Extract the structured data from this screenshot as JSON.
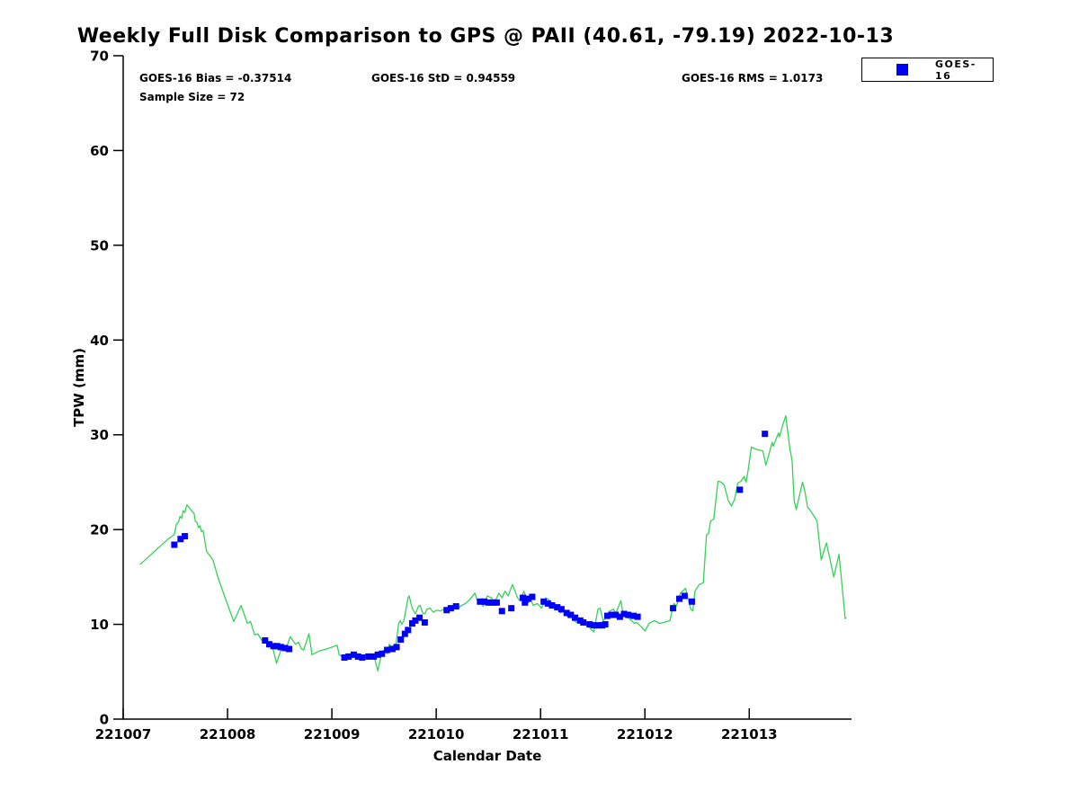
{
  "chart_data": {
    "type": "line",
    "title": "Weekly Full Disk Comparison to GPS @ PAII (40.61, -79.19) 2022-10-13",
    "xlabel": "Calendar Date",
    "ylabel": "TPW (mm)",
    "stats": {
      "bias_label": "GOES-16 Bias = -0.37514",
      "std_label": "GOES-16 StD = 0.94559",
      "rms_label": "GOES-16 RMS = 1.0173",
      "sample_label": "Sample Size = 72"
    },
    "legend": {
      "label": "GOES-16",
      "position": "top-right"
    },
    "colors": {
      "gps_line": "#35d158",
      "goes_marker": "#0000ff",
      "axis": "#000000"
    },
    "x_axis": {
      "tick_labels": [
        "221007",
        "221008",
        "221009",
        "221010",
        "221011",
        "221012",
        "221013"
      ],
      "tick_days": [
        0,
        1,
        2,
        3,
        4,
        5,
        6
      ],
      "range_days": [
        0,
        6.98
      ],
      "grid": false
    },
    "y_axis": {
      "ticks": [
        0,
        10,
        20,
        30,
        40,
        50,
        60,
        70
      ],
      "range": [
        0,
        70
      ],
      "grid": false
    },
    "series": [
      {
        "name": "GPS",
        "type": "line",
        "color_key": "gps_line",
        "points": [
          [
            0.16,
            16.3
          ],
          [
            0.25,
            17.2
          ],
          [
            0.34,
            18.1
          ],
          [
            0.43,
            19.0
          ],
          [
            0.47,
            19.3
          ],
          [
            0.49,
            19.5
          ],
          [
            0.51,
            20.6
          ],
          [
            0.53,
            20.8
          ],
          [
            0.545,
            21.4
          ],
          [
            0.56,
            21.2
          ],
          [
            0.575,
            22.0
          ],
          [
            0.59,
            21.8
          ],
          [
            0.61,
            22.6
          ],
          [
            0.635,
            22.3
          ],
          [
            0.655,
            22.0
          ],
          [
            0.68,
            21.7
          ],
          [
            0.69,
            20.9
          ],
          [
            0.71,
            20.7
          ],
          [
            0.72,
            20.2
          ],
          [
            0.735,
            20.4
          ],
          [
            0.75,
            19.8
          ],
          [
            0.765,
            19.9
          ],
          [
            0.8,
            17.7
          ],
          [
            0.86,
            16.8
          ],
          [
            0.91,
            14.9
          ],
          [
            0.97,
            13.0
          ],
          [
            1.03,
            11.2
          ],
          [
            1.06,
            10.3
          ],
          [
            1.13,
            12.0
          ],
          [
            1.19,
            10.1
          ],
          [
            1.22,
            10.3
          ],
          [
            1.26,
            8.9
          ],
          [
            1.29,
            9.0
          ],
          [
            1.34,
            8.1
          ],
          [
            1.36,
            8.5
          ],
          [
            1.39,
            7.6
          ],
          [
            1.42,
            8.1
          ],
          [
            1.47,
            5.9
          ],
          [
            1.53,
            7.9
          ],
          [
            1.56,
            7.4
          ],
          [
            1.6,
            8.7
          ],
          [
            1.62,
            8.4
          ],
          [
            1.65,
            7.9
          ],
          [
            1.68,
            8.1
          ],
          [
            1.71,
            7.4
          ],
          [
            1.73,
            7.3
          ],
          [
            1.78,
            9.0
          ],
          [
            1.81,
            6.8
          ],
          [
            1.88,
            7.2
          ],
          [
            1.95,
            7.4
          ],
          [
            2.05,
            7.8
          ],
          [
            2.07,
            6.8
          ],
          [
            2.11,
            6.5
          ],
          [
            2.16,
            6.9
          ],
          [
            2.2,
            6.5
          ],
          [
            2.24,
            6.8
          ],
          [
            2.27,
            6.2
          ],
          [
            2.31,
            6.5
          ],
          [
            2.34,
            6.9
          ],
          [
            2.37,
            6.5
          ],
          [
            2.4,
            6.8
          ],
          [
            2.44,
            5.1
          ],
          [
            2.48,
            7.1
          ],
          [
            2.51,
            7.4
          ],
          [
            2.53,
            6.9
          ],
          [
            2.55,
            7.9
          ],
          [
            2.59,
            7.3
          ],
          [
            2.61,
            7.6
          ],
          [
            2.64,
            10.1
          ],
          [
            2.655,
            10.4
          ],
          [
            2.67,
            10.0
          ],
          [
            2.69,
            10.4
          ],
          [
            2.71,
            11.6
          ],
          [
            2.73,
            12.8
          ],
          [
            2.74,
            13.0
          ],
          [
            2.77,
            11.7
          ],
          [
            2.785,
            11.4
          ],
          [
            2.8,
            11.1
          ],
          [
            2.83,
            11.9
          ],
          [
            2.845,
            12.0
          ],
          [
            2.87,
            11.2
          ],
          [
            2.89,
            11.1
          ],
          [
            2.91,
            11.6
          ],
          [
            2.94,
            11.7
          ],
          [
            2.97,
            11.3
          ],
          [
            3.01,
            11.5
          ],
          [
            3.04,
            11.4
          ],
          [
            3.09,
            11.7
          ],
          [
            3.11,
            11.8
          ],
          [
            3.17,
            11.9
          ],
          [
            3.2,
            11.6
          ],
          [
            3.23,
            11.9
          ],
          [
            3.28,
            12.2
          ],
          [
            3.32,
            12.6
          ],
          [
            3.37,
            13.3
          ],
          [
            3.4,
            12.3
          ],
          [
            3.43,
            12.5
          ],
          [
            3.45,
            11.9
          ],
          [
            3.49,
            13.0
          ],
          [
            3.53,
            12.8
          ],
          [
            3.56,
            12.3
          ],
          [
            3.6,
            13.3
          ],
          [
            3.63,
            12.8
          ],
          [
            3.66,
            13.5
          ],
          [
            3.69,
            13.0
          ],
          [
            3.73,
            14.2
          ],
          [
            3.78,
            12.8
          ],
          [
            3.8,
            12.5
          ],
          [
            3.84,
            13.5
          ],
          [
            3.88,
            12.3
          ],
          [
            3.91,
            12.5
          ],
          [
            3.93,
            12.0
          ],
          [
            3.97,
            12.2
          ],
          [
            4.01,
            11.7
          ],
          [
            4.05,
            12.8
          ],
          [
            4.08,
            12.6
          ],
          [
            4.12,
            11.9
          ],
          [
            4.15,
            12.0
          ],
          [
            4.19,
            11.2
          ],
          [
            4.22,
            11.4
          ],
          [
            4.27,
            10.7
          ],
          [
            4.29,
            10.9
          ],
          [
            4.34,
            10.2
          ],
          [
            4.36,
            10.4
          ],
          [
            4.41,
            10.0
          ],
          [
            4.44,
            10.1
          ],
          [
            4.48,
            9.5
          ],
          [
            4.51,
            9.2
          ],
          [
            4.55,
            11.6
          ],
          [
            4.57,
            11.7
          ],
          [
            4.6,
            10.4
          ],
          [
            4.62,
            10.6
          ],
          [
            4.66,
            11.4
          ],
          [
            4.7,
            11.6
          ],
          [
            4.72,
            11.1
          ],
          [
            4.77,
            12.5
          ],
          [
            4.79,
            11.1
          ],
          [
            4.83,
            10.7
          ],
          [
            4.85,
            10.6
          ],
          [
            4.9,
            10.1
          ],
          [
            4.92,
            10.2
          ],
          [
            4.97,
            9.7
          ],
          [
            5.0,
            9.3
          ],
          [
            5.04,
            10.1
          ],
          [
            5.09,
            10.4
          ],
          [
            5.14,
            10.1
          ],
          [
            5.18,
            10.2
          ],
          [
            5.24,
            10.4
          ],
          [
            5.27,
            12.0
          ],
          [
            5.28,
            12.2
          ],
          [
            5.3,
            11.9
          ],
          [
            5.33,
            12.8
          ],
          [
            5.34,
            13.3
          ],
          [
            5.37,
            13.6
          ],
          [
            5.39,
            13.8
          ],
          [
            5.41,
            12.8
          ],
          [
            5.44,
            11.6
          ],
          [
            5.46,
            11.4
          ],
          [
            5.48,
            13.5
          ],
          [
            5.52,
            14.2
          ],
          [
            5.56,
            14.4
          ],
          [
            5.59,
            19.4
          ],
          [
            5.61,
            19.6
          ],
          [
            5.63,
            20.9
          ],
          [
            5.66,
            21.1
          ],
          [
            5.7,
            25.1
          ],
          [
            5.73,
            25.0
          ],
          [
            5.76,
            24.7
          ],
          [
            5.8,
            23.0
          ],
          [
            5.83,
            22.5
          ],
          [
            5.86,
            23.2
          ],
          [
            5.89,
            24.9
          ],
          [
            5.92,
            25.1
          ],
          [
            5.95,
            25.6
          ],
          [
            5.97,
            25.0
          ],
          [
            5.99,
            26.3
          ],
          [
            6.02,
            28.7
          ],
          [
            6.06,
            28.5
          ],
          [
            6.09,
            28.4
          ],
          [
            6.13,
            28.3
          ],
          [
            6.16,
            26.8
          ],
          [
            6.22,
            29.2
          ],
          [
            6.23,
            28.8
          ],
          [
            6.28,
            30.2
          ],
          [
            6.29,
            29.8
          ],
          [
            6.32,
            31.0
          ],
          [
            6.35,
            32.0
          ],
          [
            6.39,
            28.5
          ],
          [
            6.41,
            27.3
          ],
          [
            6.43,
            23.1
          ],
          [
            6.45,
            22.1
          ],
          [
            6.51,
            25.0
          ],
          [
            6.53,
            24.2
          ],
          [
            6.56,
            22.3
          ],
          [
            6.58,
            22.1
          ],
          [
            6.61,
            21.6
          ],
          [
            6.65,
            20.9
          ],
          [
            6.69,
            16.8
          ],
          [
            6.74,
            18.6
          ],
          [
            6.81,
            15.0
          ],
          [
            6.86,
            17.4
          ],
          [
            6.92,
            10.6
          ],
          [
            6.93,
            10.7
          ]
        ]
      },
      {
        "name": "GOES-16",
        "type": "scatter",
        "marker": "square",
        "color_key": "goes_marker",
        "points": [
          [
            0.49,
            18.4
          ],
          [
            0.55,
            19.0
          ],
          [
            0.59,
            19.3
          ],
          [
            1.36,
            8.3
          ],
          [
            1.4,
            7.9
          ],
          [
            1.44,
            7.7
          ],
          [
            1.475,
            7.7
          ],
          [
            1.51,
            7.6
          ],
          [
            1.55,
            7.5
          ],
          [
            1.59,
            7.4
          ],
          [
            2.12,
            6.5
          ],
          [
            2.16,
            6.6
          ],
          [
            2.21,
            6.8
          ],
          [
            2.25,
            6.6
          ],
          [
            2.29,
            6.5
          ],
          [
            2.35,
            6.6
          ],
          [
            2.4,
            6.6
          ],
          [
            2.44,
            6.8
          ],
          [
            2.48,
            6.9
          ],
          [
            2.53,
            7.3
          ],
          [
            2.58,
            7.4
          ],
          [
            2.62,
            7.6
          ],
          [
            2.66,
            8.4
          ],
          [
            2.7,
            9.0
          ],
          [
            2.73,
            9.4
          ],
          [
            2.77,
            10.1
          ],
          [
            2.8,
            10.4
          ],
          [
            2.84,
            10.7
          ],
          [
            2.89,
            10.2
          ],
          [
            3.1,
            11.5
          ],
          [
            3.14,
            11.7
          ],
          [
            3.19,
            11.9
          ],
          [
            3.42,
            12.4
          ],
          [
            3.46,
            12.4
          ],
          [
            3.5,
            12.3
          ],
          [
            3.54,
            12.3
          ],
          [
            3.58,
            12.3
          ],
          [
            3.63,
            11.4
          ],
          [
            3.72,
            11.7
          ],
          [
            3.83,
            12.8
          ],
          [
            3.85,
            12.3
          ],
          [
            3.88,
            12.7
          ],
          [
            3.92,
            12.9
          ],
          [
            4.03,
            12.4
          ],
          [
            4.07,
            12.2
          ],
          [
            4.11,
            12.0
          ],
          [
            4.16,
            11.8
          ],
          [
            4.2,
            11.6
          ],
          [
            4.25,
            11.2
          ],
          [
            4.29,
            11.0
          ],
          [
            4.33,
            10.7
          ],
          [
            4.38,
            10.4
          ],
          [
            4.41,
            10.2
          ],
          [
            4.47,
            10.0
          ],
          [
            4.51,
            9.9
          ],
          [
            4.55,
            9.9
          ],
          [
            4.59,
            9.9
          ],
          [
            4.62,
            10.0
          ],
          [
            4.64,
            10.9
          ],
          [
            4.68,
            11.0
          ],
          [
            4.72,
            11.0
          ],
          [
            4.76,
            10.8
          ],
          [
            4.8,
            11.1
          ],
          [
            4.84,
            11.0
          ],
          [
            4.89,
            10.9
          ],
          [
            4.93,
            10.8
          ],
          [
            5.27,
            11.7
          ],
          [
            5.33,
            12.7
          ],
          [
            5.38,
            13.0
          ],
          [
            5.45,
            12.4
          ],
          [
            5.91,
            24.2
          ],
          [
            6.15,
            30.1
          ]
        ]
      }
    ]
  }
}
